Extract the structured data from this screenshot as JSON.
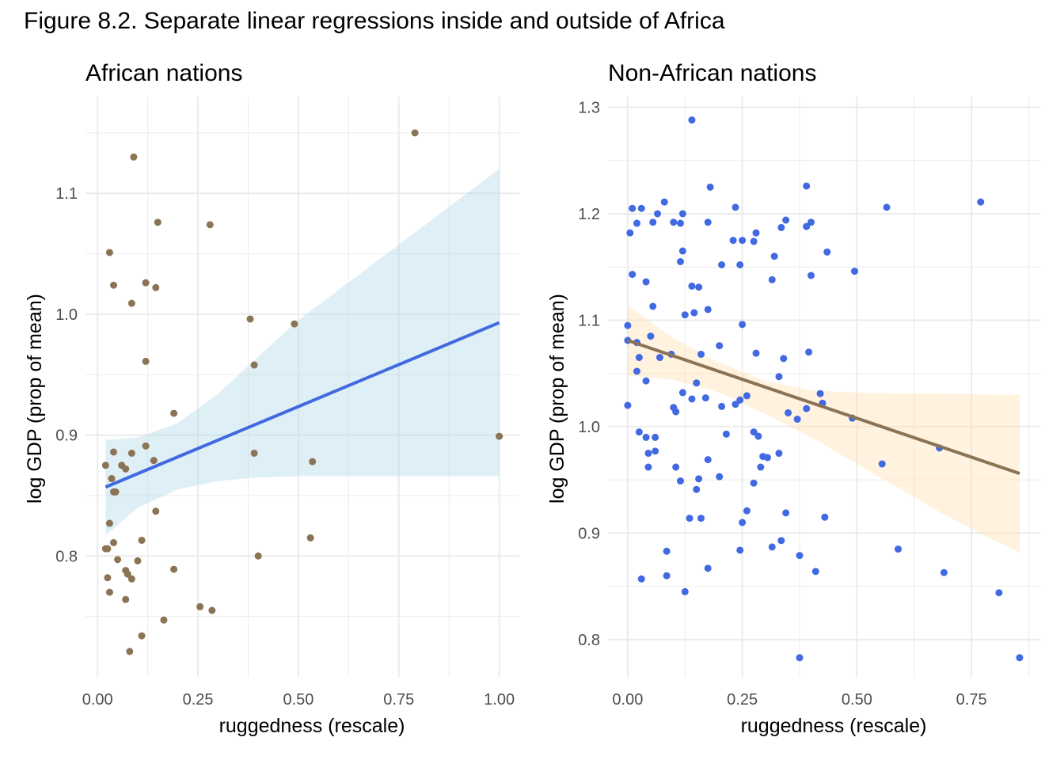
{
  "figure": {
    "title": "Figure 8.2. Separate linear regressions inside and outside of Africa"
  },
  "colors": {
    "grid": "#ebebeb",
    "african_points": "#8b7355",
    "african_line": "#4169e1",
    "african_band": "#add8e6",
    "nonafrican_points": "#4169e1",
    "nonafrican_line": "#8b7355",
    "nonafrican_band": "#ffdead"
  },
  "chart_data": [
    {
      "type": "scatter",
      "title": "African nations",
      "xlabel": "ruggedness (rescale)",
      "ylabel": "log GDP (prop of mean)",
      "xlim": [
        -0.03,
        1.05
      ],
      "ylim": [
        0.7,
        1.18
      ],
      "x_ticks": [
        "0.00",
        "0.25",
        "0.50",
        "0.75",
        "1.00"
      ],
      "x_tick_values": [
        0,
        0.25,
        0.5,
        0.75,
        1.0
      ],
      "y_ticks": [
        "0.8",
        "0.9",
        "1.0",
        "1.1"
      ],
      "y_tick_values": [
        0.8,
        0.9,
        1.0,
        1.1
      ],
      "grid": true,
      "points": [
        [
          0.09,
          1.13
        ],
        [
          0.79,
          1.15
        ],
        [
          0.15,
          1.076
        ],
        [
          0.28,
          1.074
        ],
        [
          0.03,
          1.051
        ],
        [
          0.04,
          1.024
        ],
        [
          0.12,
          1.026
        ],
        [
          0.145,
          1.022
        ],
        [
          0.085,
          1.009
        ],
        [
          0.38,
          0.996
        ],
        [
          0.49,
          0.992
        ],
        [
          0.12,
          0.961
        ],
        [
          0.39,
          0.958
        ],
        [
          0.19,
          0.918
        ],
        [
          1.0,
          0.899
        ],
        [
          0.12,
          0.891
        ],
        [
          0.04,
          0.886
        ],
        [
          0.085,
          0.885
        ],
        [
          0.39,
          0.885
        ],
        [
          0.14,
          0.879
        ],
        [
          0.535,
          0.878
        ],
        [
          0.02,
          0.875
        ],
        [
          0.06,
          0.875
        ],
        [
          0.07,
          0.872
        ],
        [
          0.035,
          0.864
        ],
        [
          0.04,
          0.853
        ],
        [
          0.045,
          0.853
        ],
        [
          0.145,
          0.837
        ],
        [
          0.03,
          0.827
        ],
        [
          0.53,
          0.815
        ],
        [
          0.11,
          0.813
        ],
        [
          0.04,
          0.811
        ],
        [
          0.025,
          0.806
        ],
        [
          0.02,
          0.806
        ],
        [
          0.4,
          0.8
        ],
        [
          0.05,
          0.797
        ],
        [
          0.1,
          0.796
        ],
        [
          0.19,
          0.789
        ],
        [
          0.07,
          0.788
        ],
        [
          0.075,
          0.785
        ],
        [
          0.025,
          0.782
        ],
        [
          0.085,
          0.781
        ],
        [
          0.03,
          0.77
        ],
        [
          0.07,
          0.764
        ],
        [
          0.255,
          0.758
        ],
        [
          0.285,
          0.755
        ],
        [
          0.165,
          0.747
        ],
        [
          0.11,
          0.734
        ],
        [
          0.08,
          0.721
        ]
      ],
      "fit": {
        "x": [
          0.02,
          1.0
        ],
        "y": [
          0.857,
          0.993
        ]
      },
      "band": {
        "x": [
          0.02,
          0.1,
          0.2,
          0.3,
          0.4,
          0.5,
          0.6,
          0.7,
          0.8,
          0.9,
          1.0
        ],
        "lower": [
          0.817,
          0.84,
          0.855,
          0.862,
          0.865,
          0.866,
          0.866,
          0.866,
          0.866,
          0.866,
          0.866
        ],
        "upper": [
          0.896,
          0.898,
          0.91,
          0.934,
          0.965,
          0.995,
          1.02,
          1.045,
          1.07,
          1.095,
          1.12
        ]
      }
    },
    {
      "type": "scatter",
      "title": "Non-African nations",
      "xlabel": "ruggedness (rescale)",
      "ylabel": "log GDP (prop of mean)",
      "xlim": [
        -0.043,
        0.9
      ],
      "ylim": [
        0.765,
        1.31
      ],
      "x_ticks": [
        "0.00",
        "0.25",
        "0.50",
        "0.75"
      ],
      "x_tick_values": [
        0,
        0.25,
        0.5,
        0.75
      ],
      "y_ticks": [
        "0.8",
        "0.9",
        "1.0",
        "1.1",
        "1.2",
        "1.3"
      ],
      "y_tick_values": [
        0.8,
        0.9,
        1.0,
        1.1,
        1.2,
        1.3
      ],
      "grid": true,
      "points": [
        [
          0.14,
          1.288
        ],
        [
          0.18,
          1.225
        ],
        [
          0.39,
          1.226
        ],
        [
          0.01,
          1.205
        ],
        [
          0.03,
          1.205
        ],
        [
          0.065,
          1.2
        ],
        [
          0.12,
          1.2
        ],
        [
          0.235,
          1.206
        ],
        [
          0.565,
          1.206
        ],
        [
          0.77,
          1.211
        ],
        [
          0.08,
          1.211
        ],
        [
          0.02,
          1.191
        ],
        [
          0.055,
          1.192
        ],
        [
          0.1,
          1.192
        ],
        [
          0.115,
          1.191
        ],
        [
          0.175,
          1.192
        ],
        [
          0.28,
          1.182
        ],
        [
          0.345,
          1.194
        ],
        [
          0.39,
          1.188
        ],
        [
          0.4,
          1.192
        ],
        [
          0.005,
          1.182
        ],
        [
          0.23,
          1.175
        ],
        [
          0.25,
          1.175
        ],
        [
          0.275,
          1.174
        ],
        [
          0.335,
          1.187
        ],
        [
          0.12,
          1.165
        ],
        [
          0.435,
          1.164
        ],
        [
          0.32,
          1.16
        ],
        [
          0.115,
          1.155
        ],
        [
          0.205,
          1.152
        ],
        [
          0.245,
          1.152
        ],
        [
          0.01,
          1.143
        ],
        [
          0.4,
          1.142
        ],
        [
          0.495,
          1.146
        ],
        [
          0.315,
          1.138
        ],
        [
          0.04,
          1.136
        ],
        [
          0.14,
          1.132
        ],
        [
          0.155,
          1.131
        ],
        [
          0.055,
          1.113
        ],
        [
          0.175,
          1.11
        ],
        [
          0.125,
          1.105
        ],
        [
          0.145,
          1.107
        ],
        [
          0.0,
          1.095
        ],
        [
          0.25,
          1.096
        ],
        [
          0.05,
          1.085
        ],
        [
          0.0,
          1.081
        ],
        [
          0.02,
          1.079
        ],
        [
          0.2,
          1.076
        ],
        [
          0.395,
          1.07
        ],
        [
          0.025,
          1.065
        ],
        [
          0.07,
          1.065
        ],
        [
          0.095,
          1.068
        ],
        [
          0.28,
          1.069
        ],
        [
          0.16,
          1.068
        ],
        [
          0.34,
          1.064
        ],
        [
          0.02,
          1.052
        ],
        [
          0.33,
          1.047
        ],
        [
          0.04,
          1.043
        ],
        [
          0.15,
          1.041
        ],
        [
          0.12,
          1.032
        ],
        [
          0.42,
          1.031
        ],
        [
          0.26,
          1.029
        ],
        [
          0.17,
          1.027
        ],
        [
          0.14,
          1.026
        ],
        [
          0.245,
          1.025
        ],
        [
          0.235,
          1.021
        ],
        [
          0.425,
          1.022
        ],
        [
          0.0,
          1.02
        ],
        [
          0.1,
          1.018
        ],
        [
          0.205,
          1.019
        ],
        [
          0.39,
          1.017
        ],
        [
          0.105,
          1.014
        ],
        [
          0.35,
          1.013
        ],
        [
          0.37,
          1.007
        ],
        [
          0.49,
          1.008
        ],
        [
          0.025,
          0.995
        ],
        [
          0.215,
          0.993
        ],
        [
          0.275,
          0.995
        ],
        [
          0.04,
          0.99
        ],
        [
          0.06,
          0.99
        ],
        [
          0.285,
          0.991
        ],
        [
          0.06,
          0.977
        ],
        [
          0.045,
          0.975
        ],
        [
          0.33,
          0.975
        ],
        [
          0.295,
          0.972
        ],
        [
          0.305,
          0.971
        ],
        [
          0.175,
          0.969
        ],
        [
          0.045,
          0.962
        ],
        [
          0.105,
          0.962
        ],
        [
          0.29,
          0.962
        ],
        [
          0.555,
          0.965
        ],
        [
          0.68,
          0.98
        ],
        [
          0.155,
          0.951
        ],
        [
          0.2,
          0.953
        ],
        [
          0.115,
          0.949
        ],
        [
          0.275,
          0.947
        ],
        [
          0.15,
          0.941
        ],
        [
          0.135,
          0.914
        ],
        [
          0.16,
          0.914
        ],
        [
          0.26,
          0.921
        ],
        [
          0.345,
          0.919
        ],
        [
          0.43,
          0.915
        ],
        [
          0.25,
          0.91
        ],
        [
          0.335,
          0.893
        ],
        [
          0.085,
          0.883
        ],
        [
          0.245,
          0.884
        ],
        [
          0.315,
          0.887
        ],
        [
          0.59,
          0.885
        ],
        [
          0.375,
          0.879
        ],
        [
          0.03,
          0.857
        ],
        [
          0.085,
          0.86
        ],
        [
          0.175,
          0.867
        ],
        [
          0.41,
          0.864
        ],
        [
          0.69,
          0.863
        ],
        [
          0.125,
          0.845
        ],
        [
          0.81,
          0.844
        ],
        [
          0.375,
          0.783
        ],
        [
          0.855,
          0.783
        ]
      ],
      "fit": {
        "x": [
          0.0,
          0.855
        ],
        "y": [
          1.081,
          0.956
        ]
      },
      "band": {
        "x": [
          0.0,
          0.1,
          0.2,
          0.3,
          0.4,
          0.5,
          0.6,
          0.7,
          0.8,
          0.855
        ],
        "lower": [
          1.048,
          1.044,
          1.032,
          1.012,
          0.99,
          0.965,
          0.94,
          0.915,
          0.893,
          0.882
        ],
        "upper": [
          1.114,
          1.083,
          1.06,
          1.043,
          1.034,
          1.032,
          1.031,
          1.031,
          1.03,
          1.03
        ]
      }
    }
  ]
}
